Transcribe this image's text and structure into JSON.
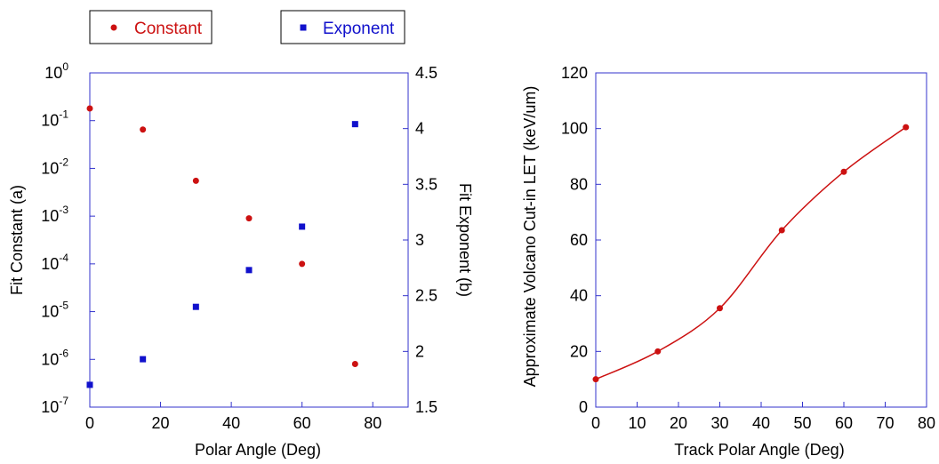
{
  "chart_data": [
    {
      "type": "scatter",
      "legend": {
        "placement": "top",
        "entries": [
          "Constant",
          "Exponent"
        ]
      },
      "xlabel": "Polar Angle (Deg)",
      "ylabel": "Fit Constant (a)",
      "y2label": "Fit Exponent (b)",
      "xlim": [
        0,
        90
      ],
      "ylim": [
        1e-07,
        1
      ],
      "yscale": "log",
      "y2lim": [
        1.5,
        4.5
      ],
      "grid": false,
      "xticks": [
        "0",
        "20",
        "40",
        "60",
        "80"
      ],
      "yticks_base": "10",
      "yticks_exp": [
        "0",
        "-1",
        "-2",
        "-3",
        "-4",
        "-5",
        "-6",
        "-7"
      ],
      "y2ticks": [
        "4.5",
        "4",
        "3.5",
        "3",
        "2.5",
        "2",
        "1.5"
      ],
      "series": [
        {
          "name": "Constant",
          "axis": "left",
          "color": "#cc1111",
          "marker": "circle",
          "x": [
            0,
            15,
            30,
            45,
            60,
            75
          ],
          "y": [
            0.18,
            0.065,
            0.0055,
            0.0009,
            0.0001,
            8e-07
          ]
        },
        {
          "name": "Exponent",
          "axis": "right",
          "color": "#1111cc",
          "marker": "square",
          "x": [
            0,
            15,
            30,
            45,
            60,
            75
          ],
          "y": [
            1.7,
            1.93,
            2.4,
            2.73,
            3.12,
            4.04
          ]
        }
      ]
    },
    {
      "type": "line",
      "xlabel": "Track Polar Angle (Deg)",
      "ylabel": "Approximate Volcano Cut-in LET (keV/um)",
      "xlim": [
        0,
        80
      ],
      "ylim": [
        0,
        120
      ],
      "grid": false,
      "xticks": [
        "0",
        "10",
        "20",
        "30",
        "40",
        "50",
        "60",
        "70",
        "80"
      ],
      "yticks": [
        "0",
        "20",
        "40",
        "60",
        "80",
        "100",
        "120"
      ],
      "series": [
        {
          "color": "#cc1111",
          "marker": "circle",
          "smooth": true,
          "x": [
            0,
            15,
            30,
            45,
            60,
            75
          ],
          "y": [
            10,
            20,
            35.5,
            63.5,
            84.5,
            100.5
          ]
        }
      ]
    }
  ]
}
